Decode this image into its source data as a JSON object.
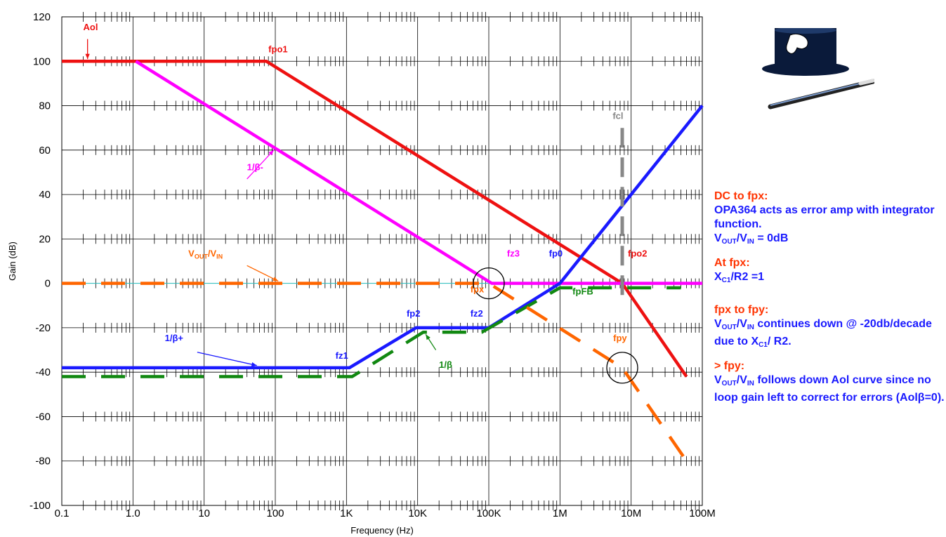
{
  "chart_data": {
    "type": "line",
    "title": "",
    "xlabel": "Frequency (Hz)",
    "ylabel": "Gain (dB)",
    "xscale": "log",
    "xlim": [
      0.1,
      100000000
    ],
    "ylim": [
      -100,
      120
    ],
    "grid": true,
    "x_tick_values": [
      0.1,
      1,
      10,
      100,
      1000,
      10000,
      100000,
      1000000,
      10000000,
      100000000
    ],
    "x_tick_labels": [
      "0.1",
      "1.0",
      "10",
      "100",
      "1K",
      "10K",
      "100K",
      "1M",
      "10M",
      "100M"
    ],
    "y_ticks": [
      120,
      100,
      80,
      60,
      40,
      20,
      0,
      -20,
      -40,
      -60,
      -80,
      -100
    ],
    "series": [
      {
        "key": "aol",
        "color": "#ee1111",
        "dashed": false,
        "points": [
          [
            0.1,
            100
          ],
          [
            75,
            100
          ],
          [
            7500000,
            0
          ],
          [
            60000000,
            -42
          ]
        ]
      },
      {
        "key": "inv_beta_minus",
        "color": "#ff00ff",
        "dashed": false,
        "points": [
          [
            1.1,
            100
          ],
          [
            110000,
            0
          ],
          [
            100000000,
            0
          ]
        ]
      },
      {
        "key": "inv_beta_plus",
        "color": "#1a1aff",
        "dashed": false,
        "points": [
          [
            0.1,
            -38
          ],
          [
            1100,
            -38
          ],
          [
            9500,
            -20
          ],
          [
            100000,
            -20
          ],
          [
            1000000,
            0
          ],
          [
            100000000,
            80
          ]
        ]
      },
      {
        "key": "inv_beta",
        "color": "#118811",
        "dashed": true,
        "points": [
          [
            0.1,
            -42
          ],
          [
            1200,
            -42
          ],
          [
            12000,
            -22
          ],
          [
            80000,
            -22
          ],
          [
            1000000,
            -2
          ],
          [
            7000000,
            -2
          ],
          [
            50000000,
            -2
          ]
        ]
      },
      {
        "key": "vout_vin",
        "color": "#ff6600",
        "dashed": true,
        "points": [
          [
            0.1,
            0
          ],
          [
            100000,
            0
          ],
          [
            7500000,
            -38
          ],
          [
            60000000,
            -80
          ]
        ]
      },
      {
        "key": "fcl_marker",
        "color": "#888888",
        "dashed": true,
        "points": [
          [
            7500000,
            70
          ],
          [
            7500000,
            -7
          ]
        ]
      }
    ],
    "circles": [
      {
        "x": 100000,
        "y": 0
      },
      {
        "x": 7500000,
        "y": -38
      }
    ],
    "labels": [
      {
        "text": "Aol",
        "x": 0.2,
        "y": 114,
        "color": "#ee1111"
      },
      {
        "text": "fpo1",
        "x": 80,
        "y": 104,
        "color": "#ee1111"
      },
      {
        "text": "1/β-",
        "x": 40,
        "y": 51,
        "color": "#ff00ff"
      },
      {
        "text": "fcl",
        "x": 5500000,
        "y": 74,
        "color": "#888888"
      },
      {
        "text": "fz3",
        "x": 180000,
        "y": 12,
        "color": "#ff00ff"
      },
      {
        "text": "fp0",
        "x": 700000,
        "y": 12,
        "color": "#1a1aff"
      },
      {
        "text": "fpo2",
        "x": 9000000,
        "y": 12,
        "color": "#ee1111"
      },
      {
        "text": "fpx",
        "x": 55000,
        "y": -4,
        "color": "#ff6600"
      },
      {
        "text": "fpFB",
        "x": 1500000,
        "y": -5,
        "color": "#118811"
      },
      {
        "text": "fp2",
        "x": 7000,
        "y": -15,
        "color": "#1a1aff"
      },
      {
        "text": "fz2",
        "x": 55000,
        "y": -15,
        "color": "#1a1aff"
      },
      {
        "text": "fpy",
        "x": 5600000,
        "y": -26,
        "color": "#ff6600"
      },
      {
        "text": "1/β+",
        "x": 2.8,
        "y": -26,
        "color": "#1a1aff"
      },
      {
        "text": "fz1",
        "x": 700,
        "y": -34,
        "color": "#1a1aff"
      },
      {
        "text": "1/β",
        "x": 20000,
        "y": -38,
        "color": "#118811"
      }
    ],
    "vout_vin_label": {
      "V": "V",
      "OUT": "OUT",
      "slash": "/V",
      "IN": "IN"
    }
  },
  "notes": [
    {
      "head": "DC to fpx:",
      "body": "OPA364 acts as error amp with integrator function.",
      "formula": "V<sub>OUT</sub>/V<sub>IN</sub> = 0dB"
    },
    {
      "head": "At fpx:",
      "formula": "X<sub>C1</sub>/R2 =1"
    },
    {
      "head": "fpx to fpy:",
      "formula": "V<sub>OUT</sub>/V<sub>IN</sub> continues down @ -20db/decade due to X<sub>C1</sub>/ R2."
    },
    {
      "head": "> fpy:",
      "formula": "V<sub>OUT</sub>/V<sub>IN</sub> follows down Aol curve since no loop gain left to correct for errors (Aolβ=0)."
    }
  ],
  "note_texts": {
    "n1_head": "DC to fpx:",
    "n1_body": "OPA364 acts as error amp with integrator function.",
    "n1_v": "V",
    "n1_out": "OUT",
    "n1_mid": "/V",
    "n1_in": "IN",
    "n1_tail": " = 0dB",
    "n2_head": "At fpx:",
    "n2_x": "X",
    "n2_c1": "C1",
    "n2_tail": "/R2 =1",
    "n3_head": "fpx to fpy:",
    "n3_v": "V",
    "n3_out": "OUT",
    "n3_mid": "/V",
    "n3_in": "IN",
    "n3_tail": " continues down @ -20db/decade due to X",
    "n3_c1": "C1",
    "n3_tail2": "/ R2.",
    "n4_head": "> fpy:",
    "n4_v": "V",
    "n4_out": "OUT",
    "n4_mid": "/V",
    "n4_in": "IN",
    "n4_tail": " follows down Aol curve since no loop gain left to correct for errors (Aolβ=0)."
  },
  "logo_icon": "magic-hat-icon"
}
